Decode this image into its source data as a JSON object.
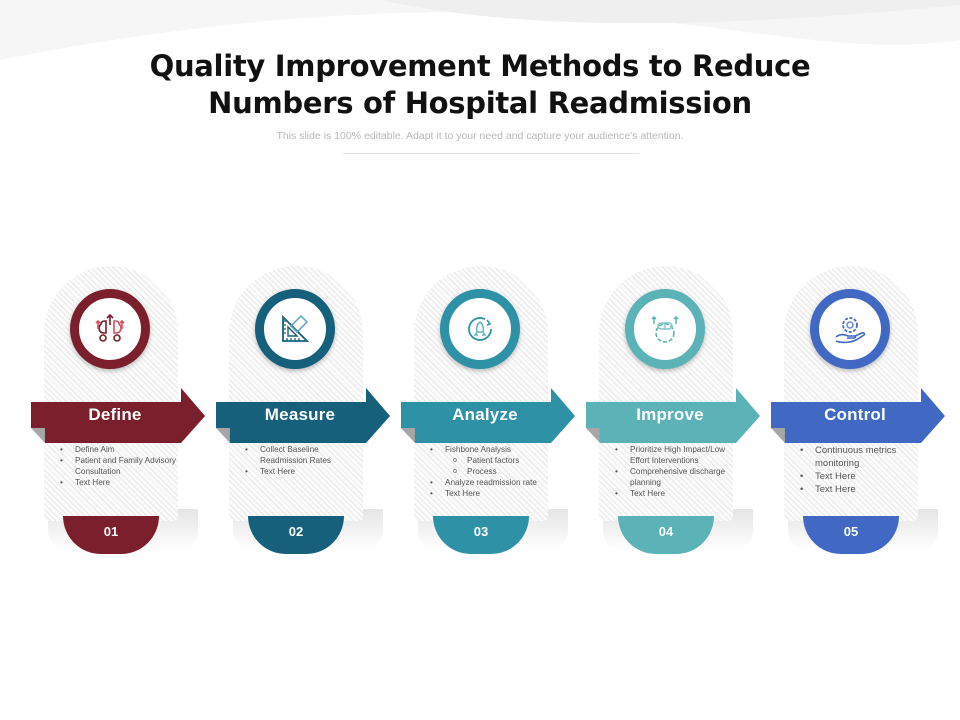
{
  "title_line1": "Quality Improvement Methods to Reduce",
  "title_line2": "Numbers of Hospital Readmission",
  "subtitle": "This slide is 100% editable. Adapt it to your need and capture your audience's attention.",
  "steps": [
    {
      "label": "Define",
      "number": "01",
      "color": "#7a1f2b",
      "icon": "brain-growth-icon",
      "bullets": [
        {
          "text": "Define Aim"
        },
        {
          "text": "Patient and Family Advisory Consultation"
        },
        {
          "text": "Text Here"
        }
      ]
    },
    {
      "label": "Measure",
      "number": "02",
      "color": "#17607c",
      "icon": "ruler-triangle-icon",
      "bullets": [
        {
          "text": "Collect Baseline Readmission Rates"
        },
        {
          "text": "Text Here"
        }
      ]
    },
    {
      "label": "Analyze",
      "number": "03",
      "color": "#2e91a6",
      "icon": "rocket-circle-icon",
      "bullets": [
        {
          "text": "Fishbone Analysis"
        },
        {
          "text": "Patient factors",
          "sub": true
        },
        {
          "text": "Process",
          "sub": true
        },
        {
          "text": "Analyze readmission rate"
        },
        {
          "text": "Text Here"
        }
      ]
    },
    {
      "label": "Improve",
      "number": "04",
      "color": "#5bb2b7",
      "icon": "brain-gear-icon",
      "bullets": [
        {
          "text": "Prioritize High Impact/Low Effort Interventions"
        },
        {
          "text": "Comprehensive discharge planning"
        },
        {
          "text": "Text Here"
        }
      ]
    },
    {
      "label": "Control",
      "number": "05",
      "color": "#4169c3",
      "icon": "gear-hand-icon",
      "bullets": [
        {
          "text": "Continuous metrics monitoring"
        },
        {
          "text": "Text Here"
        },
        {
          "text": "Text Here"
        }
      ]
    }
  ]
}
